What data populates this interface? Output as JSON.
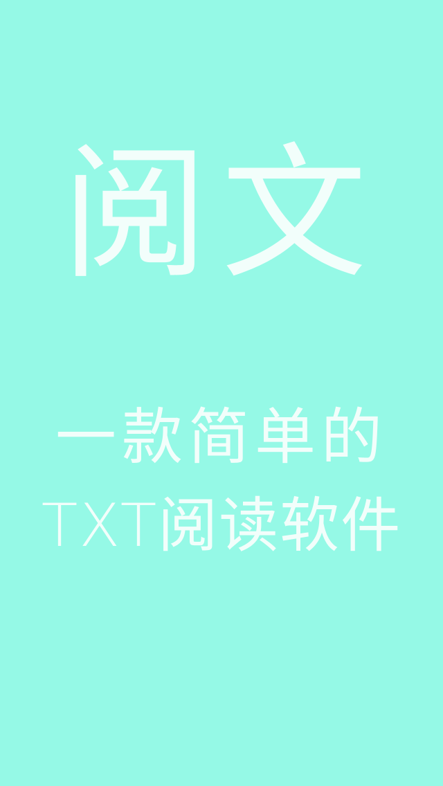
{
  "splash": {
    "title": "阅文",
    "tagline_line1": "一款简单的",
    "tagline_line2": "TXT阅读软件",
    "background_color": "#95f9e6",
    "text_color": "#f2fefb"
  }
}
